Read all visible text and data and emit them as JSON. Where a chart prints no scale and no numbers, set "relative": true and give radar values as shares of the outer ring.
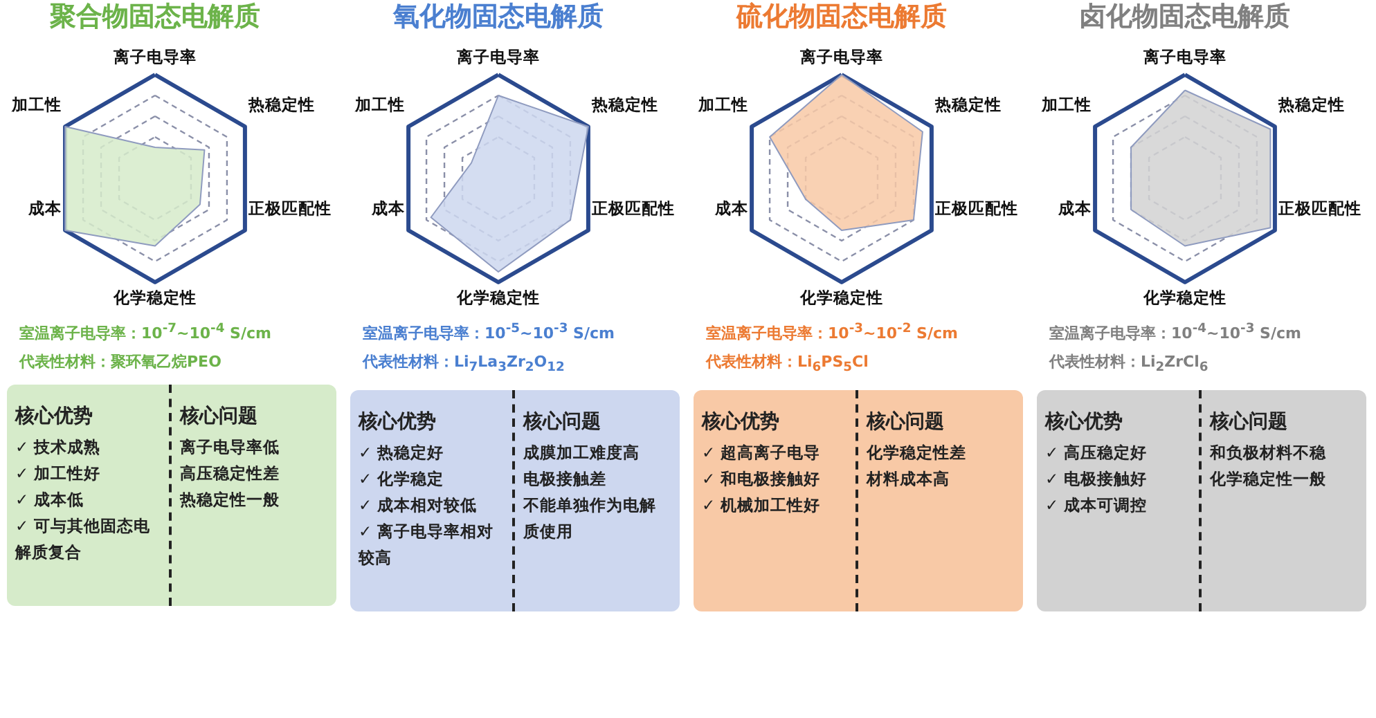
{
  "chart_data": [
    {
      "type": "radar",
      "title": "聚合物固态电解质",
      "categories": [
        "离子电导率",
        "热稳定性",
        "正极匹配性",
        "化学稳定性",
        "成本",
        "加工性"
      ],
      "relative": true,
      "grid": true,
      "series": [
        {
          "color": "#d6ebca",
          "values": [
            0.3,
            0.55,
            0.5,
            0.65,
            1.0,
            1.0
          ]
        }
      ],
      "annotations": [
        "室温离子电导率：10$^{-7}$~10$^{-4}$ S/cm",
        "代表性材料：聚环氧乙烷PEO",
        "核心优势",
        "✓ 技术成熟",
        "✓ 加工性好",
        "✓ 成本低",
        "✓ 可与其他固态电解质复合",
        "核心问题",
        "离子电导率低",
        "高压稳定性差",
        "热稳定性一般"
      ]
    },
    {
      "type": "radar",
      "title": "氧化物固态电解质",
      "categories": [
        "离子电导率",
        "热稳定性",
        "正极匹配性",
        "化学稳定性",
        "成本",
        "加工性"
      ],
      "relative": true,
      "grid": true,
      "series": [
        {
          "color": "#cdd7ef",
          "values": [
            0.8,
            1.0,
            0.8,
            0.9,
            0.75,
            0.3
          ]
        }
      ],
      "annotations": [
        "室温离子电导率：10$^{-5}$~10$^{-3}$ S/cm",
        "代表性材料：Li$_{7}$La$_{3}$Zr$_{2}$O$_{12}$",
        "核心优势",
        "✓ 热稳定好",
        "✓ 化学稳定",
        "✓ 成本相对较低",
        "✓ 离子电导率相对较高",
        "核心问题",
        "成膜加工难度高",
        "电极接触差",
        "不能单独作为电解质使用"
      ]
    },
    {
      "type": "radar",
      "title": "硫化物固态电解质",
      "categories": [
        "离子电导率",
        "热稳定性",
        "正极匹配性",
        "化学稳定性",
        "成本",
        "加工性"
      ],
      "relative": true,
      "grid": true,
      "series": [
        {
          "color": "#f8c9a6",
          "values": [
            1.0,
            0.9,
            0.8,
            0.5,
            0.4,
            0.8
          ]
        }
      ],
      "annotations": [
        "室温离子电导率：10$^{-3}$~10$^{-2}$ S/cm",
        "代表性材料：Li$_{6}$PS$_{5}$Cl",
        "核心优势",
        "✓ 超高离子电导",
        "✓ 和电极接触好",
        "✓ 机械加工性好",
        "核心问题",
        "化学稳定性差",
        "材料成本高"
      ]
    },
    {
      "type": "radar",
      "title": "卤化物固态电解质",
      "categories": [
        "离子电导率",
        "热稳定性",
        "正极匹配性",
        "化学稳定性",
        "成本",
        "加工性"
      ],
      "relative": true,
      "grid": true,
      "series": [
        {
          "color": "#d2d2d2",
          "values": [
            0.85,
            0.95,
            0.95,
            0.65,
            0.6,
            0.6
          ]
        }
      ],
      "annotations": [
        "室温离子电导率：10$^{-4}$~10$^{-3}$ S/cm",
        "代表性材料：Li$_{2}$ZrCl$_{6}$",
        "核心优势",
        "✓ 高压稳定好",
        "✓ 电极接触好",
        "✓ 成本可调控",
        "核心问题",
        "和负极材料不稳",
        "化学稳定性一般"
      ]
    }
  ]
}
